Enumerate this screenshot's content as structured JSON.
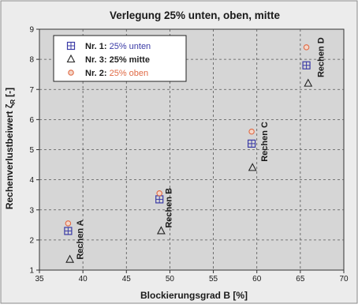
{
  "chart_data": {
    "type": "scatter",
    "title": "Verlegung 25% unten, oben, mitte",
    "xlabel": "Blockierungsgrad B [%]",
    "ylabel_main": "Rechenverlustbeiwert ζ",
    "ylabel_sub": "R",
    "ylabel_unit": "[-]",
    "xlim": [
      35,
      70
    ],
    "ylim": [
      1,
      9
    ],
    "xticks": [
      35,
      40,
      45,
      50,
      55,
      60,
      65,
      70
    ],
    "yticks": [
      1,
      2,
      3,
      4,
      5,
      6,
      7,
      8,
      9
    ],
    "grid": true,
    "legend_position": "top-left",
    "series": [
      {
        "name": "Nr. 1: 25% unten",
        "name_prefix": "Nr. 1:",
        "name_suffix": "25% unten",
        "marker": "square-plus",
        "color": "#3b3ba6",
        "x": [
          38.3,
          48.8,
          59.4,
          65.7
        ],
        "y": [
          2.3,
          3.35,
          5.2,
          7.8
        ]
      },
      {
        "name": "Nr. 3: 25% mitte",
        "name_prefix": "Nr. 3:",
        "name_suffix": "25% mitte",
        "marker": "triangle",
        "color": "#222222",
        "x": [
          38.5,
          49.0,
          59.5,
          65.9
        ],
        "y": [
          1.35,
          2.3,
          4.4,
          7.2
        ]
      },
      {
        "name": "Nr. 2: 25% oben",
        "name_prefix": "Nr. 2:",
        "name_suffix": "25% oben",
        "marker": "circle",
        "color": "#e06a45",
        "x": [
          38.3,
          48.8,
          59.4,
          65.7
        ],
        "y": [
          2.55,
          3.55,
          5.6,
          8.4
        ]
      }
    ],
    "annotations": [
      {
        "text": "Rechen A",
        "x": 40.0,
        "y": 1.35
      },
      {
        "text": "Rechen B",
        "x": 50.2,
        "y": 2.4
      },
      {
        "text": "Rechen C",
        "x": 61.2,
        "y": 4.6
      },
      {
        "text": "Rechen D",
        "x": 67.7,
        "y": 7.4
      }
    ]
  },
  "colors": {
    "plot_background": "#d6d6d6",
    "frame_background": "#ececec",
    "title_color": "#1a1a1a",
    "label_prefix_color": "#1a1a1a"
  }
}
